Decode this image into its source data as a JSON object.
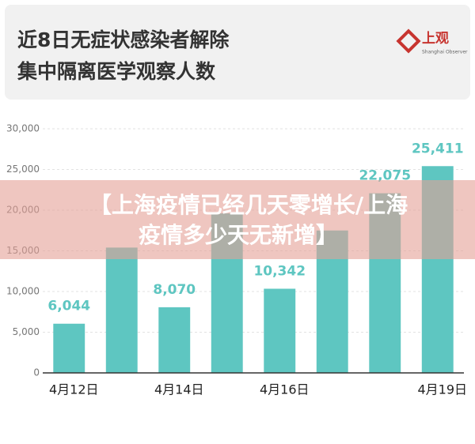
{
  "header": {
    "title": [
      "近8日无症状感染者解除",
      "集中隔离医学观察人数"
    ],
    "logo": "上观",
    "logo_sub": "Shanghai Observer"
  },
  "chart_data": {
    "type": "bar",
    "categories": [
      "4月12日",
      null,
      "4月14日",
      null,
      "4月16日",
      null,
      null,
      "4月19日"
    ],
    "values": [
      6044,
      15400,
      8070,
      19600,
      10342,
      17500,
      22075,
      25411
    ],
    "value_labels": [
      "6,044",
      null,
      "8,070",
      null,
      "10,342",
      null,
      "22,075",
      "25,411"
    ],
    "color": "#5ec6c1",
    "ylim": [
      0,
      30000
    ],
    "yticks": [
      0,
      {
        "value": 5000,
        "label": "5,000"
      },
      {
        "value": 10000,
        "label": "10,000"
      },
      {
        "value": 15000,
        "label": "15,000"
      },
      {
        "value": 20000,
        "label": "20,000"
      },
      {
        "value": 25000,
        "label": "25,000"
      },
      {
        "value": 30000,
        "label": "30,000"
      }
    ],
    "grid": true
  },
  "banner": {
    "lines": [
      "【上海疫情已经几天零增长/上海",
      "疫情多少天无新增】"
    ]
  }
}
